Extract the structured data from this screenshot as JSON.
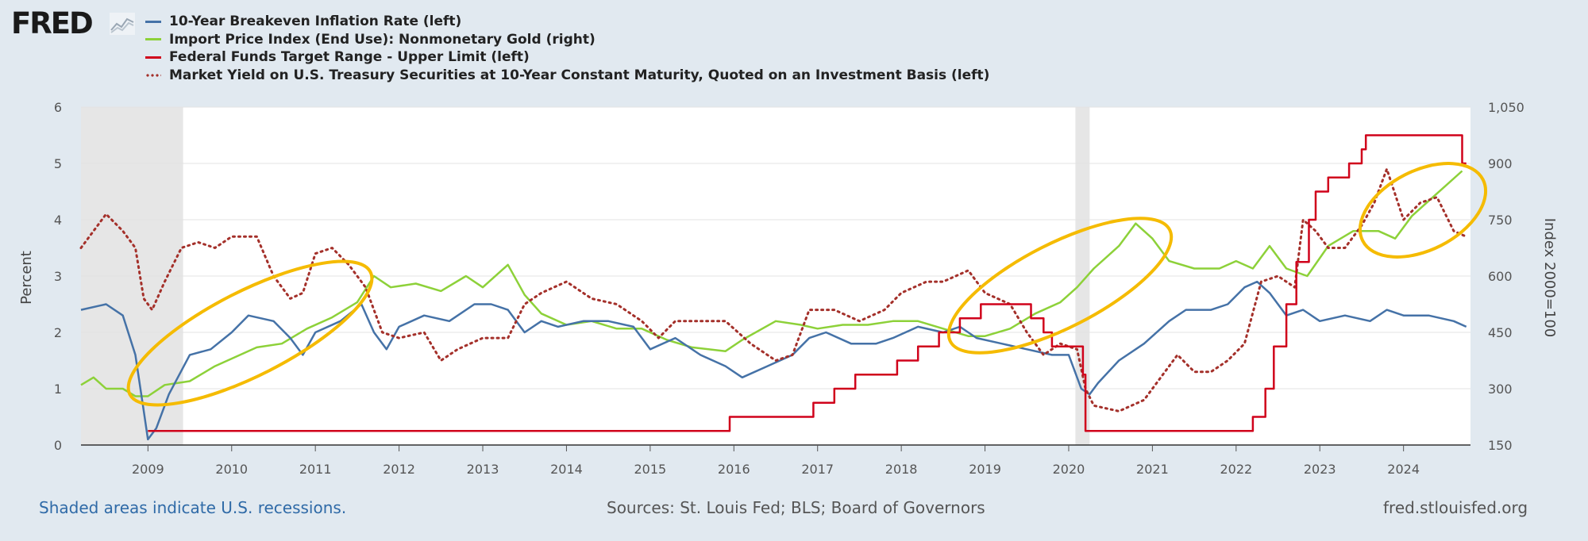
{
  "brand": "FRED",
  "footer": {
    "recession_note": "Shaded areas indicate U.S. recessions.",
    "sources": "Sources: St. Louis Fed; BLS; Board of Governors",
    "site": "fred.stlouisfed.org"
  },
  "colors": {
    "blue": "#4572a7",
    "green": "#8dd139",
    "red": "#d0021b",
    "dots": "#a4302a",
    "highlight": "#f5bb00",
    "recession": "#e6e6e6"
  },
  "chart_data": {
    "type": "line",
    "ylabel": "Percent",
    "y2label": "Index 2000=100",
    "ylim": [
      0,
      6
    ],
    "y2lim": [
      150,
      1050
    ],
    "xlim": [
      2008.2,
      2024.8
    ],
    "x_ticks": [
      "2009",
      "2010",
      "2011",
      "2012",
      "2013",
      "2014",
      "2015",
      "2016",
      "2017",
      "2018",
      "2019",
      "2020",
      "2021",
      "2022",
      "2023",
      "2024"
    ],
    "y_ticks": [
      "0",
      "1",
      "2",
      "3",
      "4",
      "5",
      "6"
    ],
    "y2_ticks": [
      "150",
      "300",
      "450",
      "600",
      "750",
      "900",
      "1,050"
    ],
    "recessions": [
      [
        2008.2,
        2009.42
      ],
      [
        2020.08,
        2020.25
      ]
    ],
    "series": [
      {
        "name": "10-Year Breakeven Inflation Rate (left)",
        "axis": "left",
        "style": "solid",
        "color": "#4572a7",
        "x": [
          2008.2,
          2008.5,
          2008.7,
          2008.85,
          2008.95,
          2009.0,
          2009.1,
          2009.25,
          2009.5,
          2009.75,
          2010.0,
          2010.2,
          2010.5,
          2010.7,
          2010.85,
          2011.0,
          2011.3,
          2011.55,
          2011.7,
          2011.85,
          2012.0,
          2012.3,
          2012.6,
          2012.9,
          2013.1,
          2013.3,
          2013.5,
          2013.7,
          2013.9,
          2014.2,
          2014.5,
          2014.8,
          2015.0,
          2015.3,
          2015.6,
          2015.9,
          2016.1,
          2016.4,
          2016.7,
          2016.9,
          2017.1,
          2017.4,
          2017.7,
          2017.9,
          2018.2,
          2018.5,
          2018.7,
          2018.9,
          2019.2,
          2019.5,
          2019.8,
          2020.0,
          2020.15,
          2020.25,
          2020.35,
          2020.6,
          2020.9,
          2021.2,
          2021.4,
          2021.7,
          2021.9,
          2022.1,
          2022.25,
          2022.4,
          2022.6,
          2022.8,
          2023.0,
          2023.3,
          2023.6,
          2023.8,
          2024.0,
          2024.3,
          2024.6,
          2024.75
        ],
        "y": [
          2.4,
          2.5,
          2.3,
          1.6,
          0.6,
          0.1,
          0.3,
          0.9,
          1.6,
          1.7,
          2.0,
          2.3,
          2.2,
          1.9,
          1.6,
          2.0,
          2.2,
          2.5,
          2.0,
          1.7,
          2.1,
          2.3,
          2.2,
          2.5,
          2.5,
          2.4,
          2.0,
          2.2,
          2.1,
          2.2,
          2.2,
          2.1,
          1.7,
          1.9,
          1.6,
          1.4,
          1.2,
          1.4,
          1.6,
          1.9,
          2.0,
          1.8,
          1.8,
          1.9,
          2.1,
          2.0,
          2.1,
          1.9,
          1.8,
          1.7,
          1.6,
          1.6,
          1.0,
          0.9,
          1.1,
          1.5,
          1.8,
          2.2,
          2.4,
          2.4,
          2.5,
          2.8,
          2.9,
          2.7,
          2.3,
          2.4,
          2.2,
          2.3,
          2.2,
          2.4,
          2.3,
          2.3,
          2.2,
          2.1
        ]
      },
      {
        "name": "Import Price Index (End Use): Nonmonetary Gold (right)",
        "axis": "right",
        "style": "solid",
        "color": "#8dd139",
        "x": [
          2008.2,
          2008.35,
          2008.5,
          2008.7,
          2008.85,
          2009.0,
          2009.2,
          2009.5,
          2009.8,
          2010.0,
          2010.3,
          2010.6,
          2010.9,
          2011.2,
          2011.5,
          2011.7,
          2011.9,
          2012.2,
          2012.5,
          2012.8,
          2013.0,
          2013.3,
          2013.5,
          2013.7,
          2014.0,
          2014.3,
          2014.6,
          2014.9,
          2015.2,
          2015.5,
          2015.9,
          2016.1,
          2016.5,
          2016.8,
          2017.0,
          2017.3,
          2017.6,
          2017.9,
          2018.2,
          2018.5,
          2018.8,
          2019.0,
          2019.3,
          2019.6,
          2019.9,
          2020.1,
          2020.3,
          2020.6,
          2020.8,
          2021.0,
          2021.2,
          2021.5,
          2021.8,
          2022.0,
          2022.2,
          2022.4,
          2022.6,
          2022.85,
          2023.1,
          2023.4,
          2023.7,
          2023.9,
          2024.1,
          2024.3,
          2024.5,
          2024.7
        ],
        "y": [
          310,
          330,
          300,
          300,
          280,
          280,
          310,
          320,
          360,
          380,
          410,
          420,
          460,
          490,
          530,
          600,
          570,
          580,
          560,
          600,
          570,
          630,
          550,
          500,
          470,
          480,
          460,
          460,
          430,
          410,
          400,
          430,
          480,
          470,
          460,
          470,
          470,
          480,
          480,
          460,
          440,
          440,
          460,
          500,
          530,
          570,
          620,
          680,
          740,
          700,
          640,
          620,
          620,
          640,
          620,
          680,
          620,
          600,
          680,
          720,
          720,
          700,
          760,
          800,
          840,
          880
        ]
      },
      {
        "name": "Federal Funds Target Range - Upper Limit (left)",
        "axis": "left",
        "style": "step",
        "color": "#d0021b",
        "x": [
          2009.0,
          2015.95,
          2016.95,
          2017.2,
          2017.45,
          2017.95,
          2018.2,
          2018.45,
          2018.7,
          2018.95,
          2019.55,
          2019.7,
          2019.8,
          2020.17,
          2020.2,
          2022.2,
          2022.35,
          2022.45,
          2022.6,
          2022.72,
          2022.87,
          2022.95,
          2023.1,
          2023.35,
          2023.5,
          2023.55,
          2024.7,
          2024.75
        ],
        "y": [
          0.25,
          0.5,
          0.75,
          1.0,
          1.25,
          1.5,
          1.75,
          2.0,
          2.25,
          2.5,
          2.25,
          2.0,
          1.75,
          1.25,
          0.25,
          0.5,
          1.0,
          1.75,
          2.5,
          3.25,
          4.0,
          4.5,
          4.75,
          5.0,
          5.25,
          5.5,
          5.0,
          5.0
        ]
      },
      {
        "name": "Market Yield on U.S. Treasury Securities at 10-Year Constant Maturity, Quoted on an Investment Basis (left)",
        "axis": "left",
        "style": "dotted",
        "color": "#a4302a",
        "x": [
          2008.2,
          2008.4,
          2008.5,
          2008.7,
          2008.85,
          2008.95,
          2009.05,
          2009.2,
          2009.4,
          2009.6,
          2009.8,
          2010.0,
          2010.3,
          2010.5,
          2010.7,
          2010.85,
          2011.0,
          2011.2,
          2011.4,
          2011.6,
          2011.8,
          2012.0,
          2012.3,
          2012.5,
          2012.7,
          2013.0,
          2013.3,
          2013.5,
          2013.7,
          2014.0,
          2014.3,
          2014.6,
          2014.9,
          2015.1,
          2015.3,
          2015.6,
          2015.9,
          2016.2,
          2016.5,
          2016.7,
          2016.9,
          2017.2,
          2017.5,
          2017.8,
          2018.0,
          2018.3,
          2018.5,
          2018.8,
          2019.0,
          2019.3,
          2019.5,
          2019.7,
          2019.9,
          2020.1,
          2020.2,
          2020.3,
          2020.6,
          2020.9,
          2021.1,
          2021.3,
          2021.5,
          2021.7,
          2021.9,
          2022.1,
          2022.3,
          2022.5,
          2022.7,
          2022.8,
          2022.95,
          2023.1,
          2023.3,
          2023.5,
          2023.65,
          2023.8,
          2024.0,
          2024.2,
          2024.4,
          2024.6,
          2024.75
        ],
        "y": [
          3.5,
          3.9,
          4.1,
          3.8,
          3.5,
          2.6,
          2.4,
          2.9,
          3.5,
          3.6,
          3.5,
          3.7,
          3.7,
          3.0,
          2.6,
          2.7,
          3.4,
          3.5,
          3.2,
          2.8,
          2.0,
          1.9,
          2.0,
          1.5,
          1.7,
          1.9,
          1.9,
          2.5,
          2.7,
          2.9,
          2.6,
          2.5,
          2.2,
          1.9,
          2.2,
          2.2,
          2.2,
          1.8,
          1.5,
          1.6,
          2.4,
          2.4,
          2.2,
          2.4,
          2.7,
          2.9,
          2.9,
          3.1,
          2.7,
          2.5,
          2.0,
          1.6,
          1.8,
          1.7,
          1.0,
          0.7,
          0.6,
          0.8,
          1.2,
          1.6,
          1.3,
          1.3,
          1.5,
          1.8,
          2.9,
          3.0,
          2.8,
          4.0,
          3.8,
          3.5,
          3.5,
          3.9,
          4.3,
          4.9,
          4.0,
          4.3,
          4.4,
          3.8,
          3.7
        ]
      }
    ]
  }
}
